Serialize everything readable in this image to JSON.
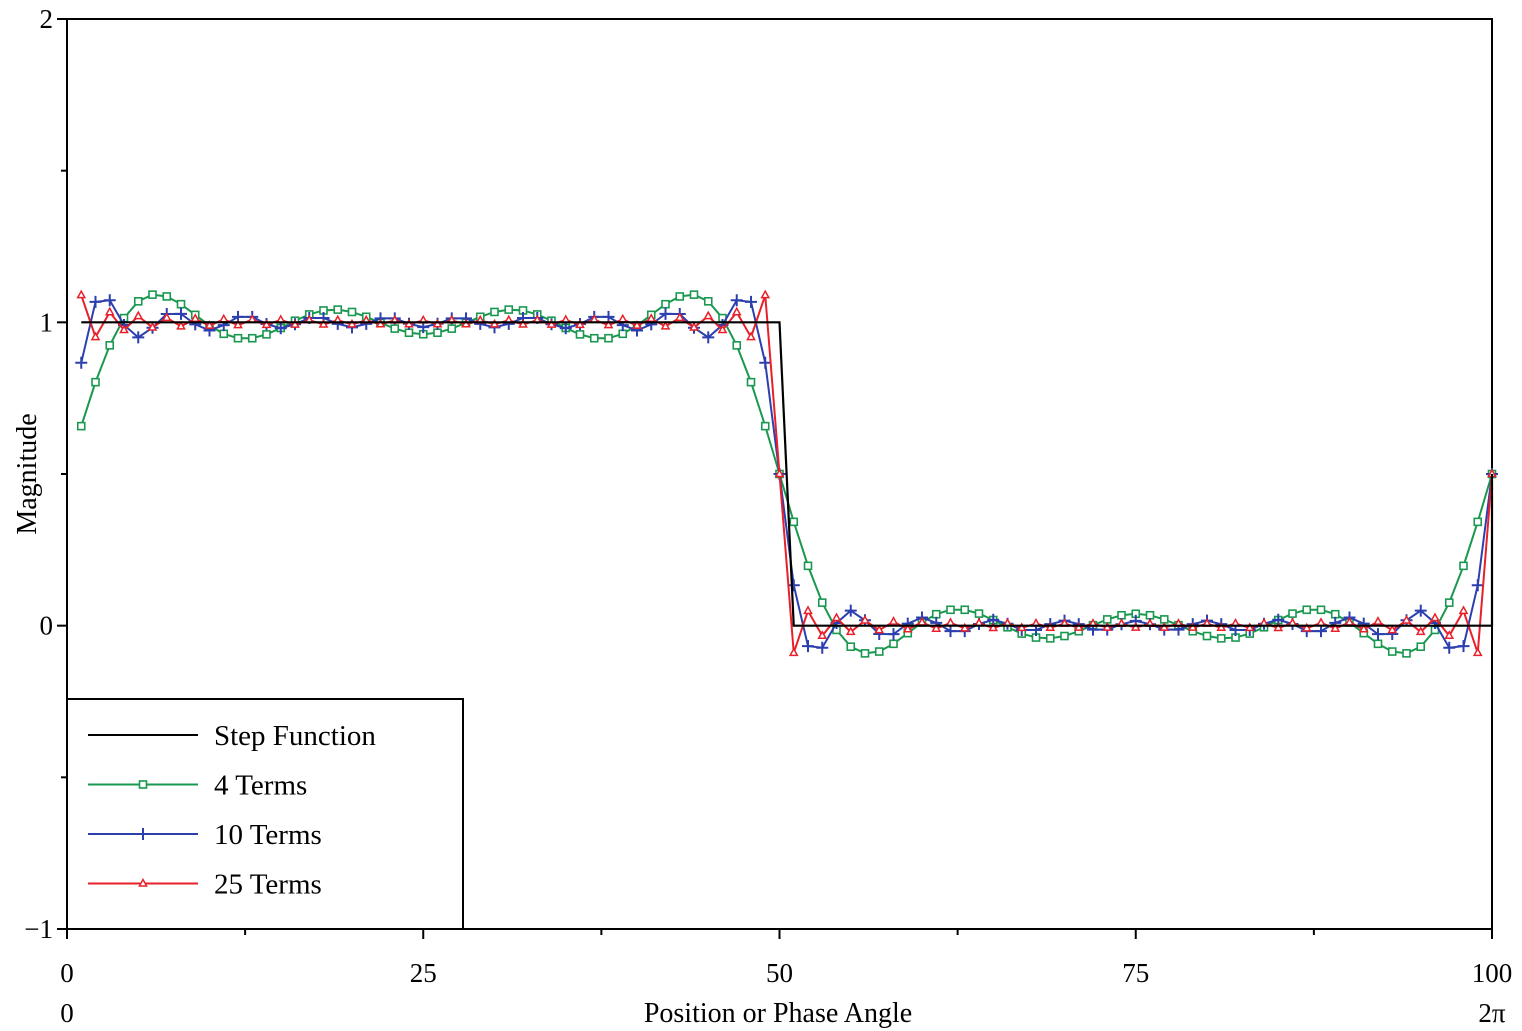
{
  "chart_data": {
    "type": "line",
    "title": "",
    "xlabel": "Position or Phase Angle",
    "ylabel": "Magnitude",
    "xlim": [
      0,
      100
    ],
    "ylim": [
      -1,
      2
    ],
    "x_ticks": [
      0,
      25,
      50,
      75,
      100
    ],
    "x_minor_ticks": [
      12.5,
      37.5,
      62.5,
      87.5
    ],
    "x_tick_labels": [
      "0",
      "25",
      "50",
      "75",
      "100"
    ],
    "x_secondary_labels": [
      "0",
      "2π"
    ],
    "y_ticks": [
      -1,
      0,
      1,
      2
    ],
    "y_minor_ticks": [
      -0.5,
      0.5,
      1.5
    ],
    "y_tick_labels": [
      "−1",
      "0",
      "1",
      "2"
    ],
    "grid": false,
    "legend_position": "bottom-left",
    "terms_start": 1,
    "terms_step": 1,
    "series": [
      {
        "name": "Step Function",
        "color": "#000000",
        "marker": "none",
        "x": [
          1,
          50,
          50.5,
          51,
          100,
          100
        ],
        "y": [
          1,
          1,
          0.5,
          0,
          0,
          0.5
        ]
      },
      {
        "name": "4 Terms",
        "color": "#1a9850",
        "marker": "square",
        "n_terms": 4
      },
      {
        "name": "10 Terms",
        "color": "#2c3fae",
        "marker": "plus",
        "n_terms": 10
      },
      {
        "name": "25 Terms",
        "color": "#e8202a",
        "marker": "triangle",
        "n_terms": 25
      }
    ]
  }
}
